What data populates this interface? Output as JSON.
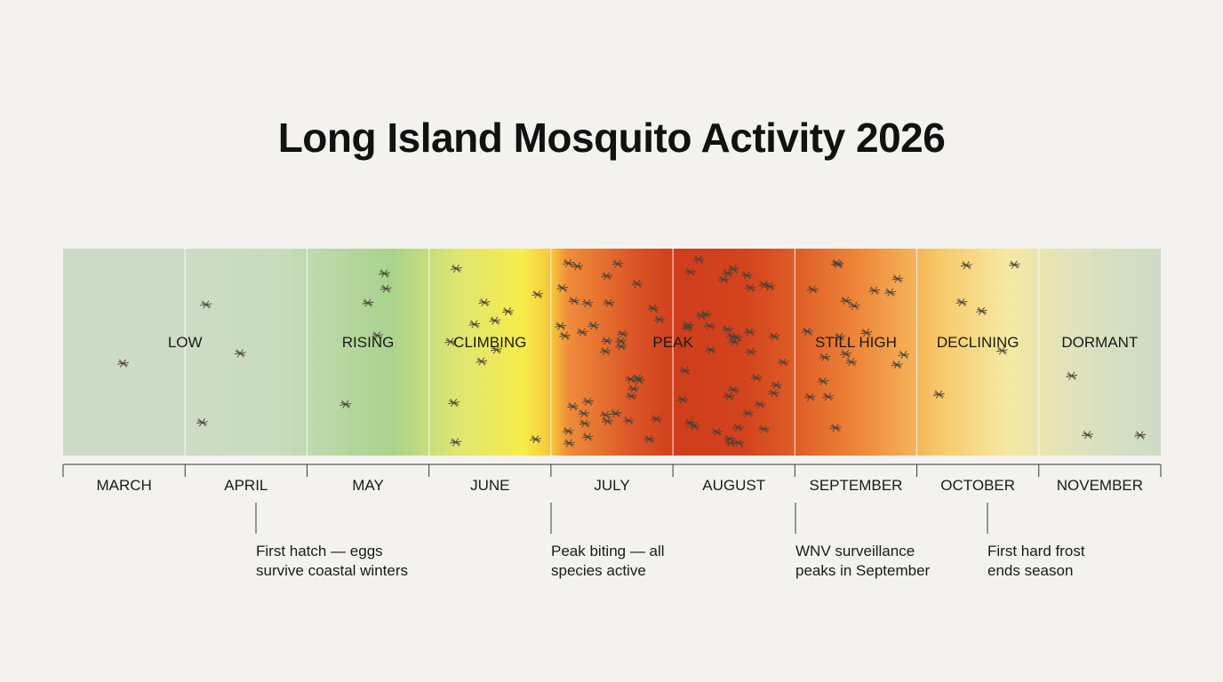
{
  "chart_data": {
    "type": "heatmap",
    "title": "Long Island Mosquito Activity 2026",
    "categories": [
      "MARCH",
      "APRIL",
      "MAY",
      "JUNE",
      "JULY",
      "AUGUST",
      "SEPTEMBER",
      "OCTOBER",
      "NOVEMBER"
    ],
    "levels": [
      {
        "label": "LOW",
        "start_month": "MARCH",
        "end_month": "APRIL"
      },
      {
        "label": "RISING",
        "start_month": "MAY",
        "end_month": "MAY"
      },
      {
        "label": "CLIMBING",
        "start_month": "JUNE",
        "end_month": "JUNE"
      },
      {
        "label": "PEAK",
        "start_month": "JULY",
        "end_month": "AUGUST"
      },
      {
        "label": "STILL HIGH",
        "start_month": "SEPTEMBER",
        "end_month": "SEPTEMBER"
      },
      {
        "label": "DECLINING",
        "start_month": "OCTOBER",
        "end_month": "OCTOBER"
      },
      {
        "label": "DORMANT",
        "start_month": "NOVEMBER",
        "end_month": "NOVEMBER"
      }
    ],
    "mosquito_counts": [
      1,
      3,
      5,
      12,
      38,
      40,
      20,
      6,
      3
    ],
    "annotations": [
      {
        "month": "APRIL",
        "lines": [
          "First hatch — eggs",
          "survive coastal winters"
        ]
      },
      {
        "month": "JULY",
        "lines": [
          "Peak biting — all",
          "species active"
        ]
      },
      {
        "month": "SEPTEMBER",
        "lines": [
          "WNV surveillance",
          "peaks in September"
        ]
      },
      {
        "month": "OCTOBER",
        "lines": [
          "First hard frost",
          "ends season"
        ]
      }
    ],
    "colors": {
      "low": "#cddcc6",
      "rising": "#a9d38c",
      "climbing": "#f7ec4a",
      "peak": "#d2401c",
      "still_high": "#f08a3c",
      "declining": "#f6e9a2",
      "dormant": "#cddcc6"
    }
  }
}
